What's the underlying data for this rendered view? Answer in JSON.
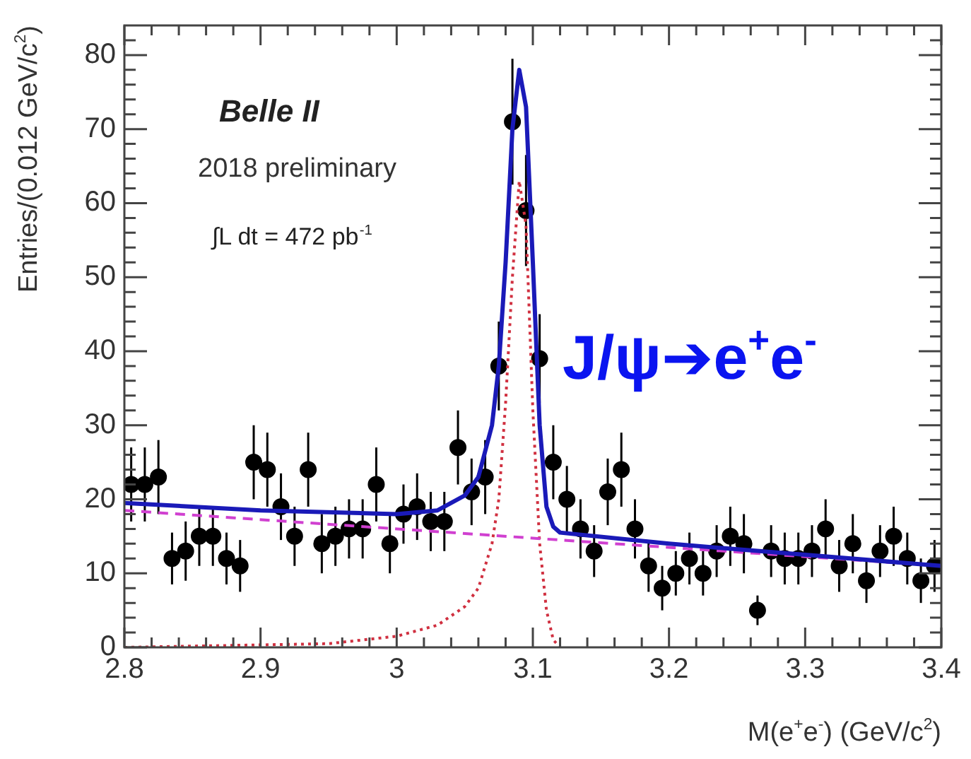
{
  "chart_data": {
    "type": "scatter",
    "xlabel": "M(e$^{+}$e$^{-}$) (GeV/c$^{2}$)",
    "ylabel": "Entries/(0.012 GeV/c$^{2}$)",
    "annotations": [
      "Belle II",
      "2018 preliminary",
      "∫L dt = 472 pb$^{-1}$",
      "J/ψ➔e$^{+}$e$^{-}$"
    ],
    "xlim": [
      2.8,
      3.4
    ],
    "ylim": [
      0,
      84
    ],
    "xticks": [
      2.8,
      {
        "value": 2.82,
        "label": null
      },
      {
        "value": 2.84,
        "label": null
      },
      {
        "value": 2.86,
        "label": null
      },
      {
        "value": 2.88,
        "label": null
      },
      2.9,
      {
        "value": 2.92,
        "label": null
      },
      {
        "value": 2.94,
        "label": null
      },
      {
        "value": 2.96,
        "label": null
      },
      {
        "value": 2.98,
        "label": null
      },
      3,
      {
        "value": 3.02,
        "label": null
      },
      {
        "value": 3.04,
        "label": null
      },
      {
        "value": 3.06,
        "label": null
      },
      {
        "value": 3.08,
        "label": null
      },
      3.1,
      {
        "value": 3.12,
        "label": null
      },
      {
        "value": 3.14,
        "label": null
      },
      {
        "value": 3.16,
        "label": null
      },
      {
        "value": 3.18,
        "label": null
      },
      3.2,
      {
        "value": 3.22,
        "label": null
      },
      {
        "value": 3.24,
        "label": null
      },
      {
        "value": 3.26,
        "label": null
      },
      {
        "value": 3.28,
        "label": null
      },
      3.3,
      {
        "value": 3.32,
        "label": null
      },
      {
        "value": 3.34,
        "label": null
      },
      {
        "value": 3.36,
        "label": null
      },
      {
        "value": 3.38,
        "label": null
      },
      3.4
    ],
    "yticks": [
      0,
      {
        "value": 2,
        "label": null
      },
      {
        "value": 4,
        "label": null
      },
      {
        "value": 6,
        "label": null
      },
      {
        "value": 8,
        "label": null
      },
      10,
      {
        "value": 12,
        "label": null
      },
      {
        "value": 14,
        "label": null
      },
      {
        "value": 16,
        "label": null
      },
      {
        "value": 18,
        "label": null
      },
      20,
      {
        "value": 22,
        "label": null
      },
      {
        "value": 24,
        "label": null
      },
      {
        "value": 26,
        "label": null
      },
      {
        "value": 28,
        "label": null
      },
      30,
      {
        "value": 32,
        "label": null
      },
      {
        "value": 34,
        "label": null
      },
      {
        "value": 36,
        "label": null
      },
      {
        "value": 38,
        "label": null
      },
      40,
      {
        "value": 42,
        "label": null
      },
      {
        "value": 44,
        "label": null
      },
      {
        "value": 46,
        "label": null
      },
      {
        "value": 48,
        "label": null
      },
      50,
      {
        "value": 52,
        "label": null
      },
      {
        "value": 54,
        "label": null
      },
      {
        "value": 56,
        "label": null
      },
      {
        "value": 58,
        "label": null
      },
      60,
      {
        "value": 62,
        "label": null
      },
      {
        "value": 64,
        "label": null
      },
      {
        "value": 66,
        "label": null
      },
      {
        "value": 68,
        "label": null
      },
      70,
      {
        "value": 72,
        "label": null
      },
      {
        "value": 74,
        "label": null
      },
      {
        "value": 76,
        "label": null
      },
      {
        "value": 78,
        "label": null
      },
      80,
      {
        "value": 82,
        "label": null
      }
    ],
    "grid": false,
    "legend": false,
    "series": [
      {
        "color": "#000000",
        "marker": "circle",
        "x": [
          2.805,
          2.815,
          2.825,
          2.835,
          2.845,
          2.855,
          2.865,
          2.875,
          2.885,
          2.895,
          2.905,
          2.915,
          2.925,
          2.935,
          2.945,
          2.955,
          2.965,
          2.975,
          2.985,
          2.995,
          3.005,
          3.015,
          3.025,
          3.035,
          3.045,
          3.055,
          3.065,
          3.075,
          3.085,
          3.095,
          3.105,
          3.115,
          3.125,
          3.135,
          3.145,
          3.155,
          3.165,
          3.175,
          3.185,
          3.195,
          3.205,
          3.215,
          3.225,
          3.235,
          3.245,
          3.255,
          3.265,
          3.275,
          3.285,
          3.295,
          3.305,
          3.315,
          3.325,
          3.335,
          3.345,
          3.355,
          3.365,
          3.375,
          3.385,
          3.395
        ],
        "values": [
          22,
          22,
          23,
          12,
          13,
          15,
          15,
          12,
          11,
          25,
          24,
          19,
          15,
          24,
          14,
          15,
          16,
          16,
          22,
          14,
          18,
          19,
          17,
          17,
          27,
          21,
          23,
          38,
          71,
          59,
          39,
          25,
          20,
          16,
          13,
          21,
          24,
          16,
          11,
          8,
          10,
          12,
          10,
          13,
          15,
          14,
          5,
          13,
          12,
          12,
          13,
          16,
          11,
          14,
          9,
          13,
          15,
          12,
          9,
          11
        ],
        "errors": [
          5,
          5,
          5,
          3.5,
          4,
          4,
          4,
          3.5,
          3.5,
          5,
          5,
          4.5,
          4,
          5,
          4,
          4,
          4,
          4,
          5,
          4,
          4,
          4.5,
          4,
          4,
          5,
          4.5,
          5,
          6,
          8.5,
          7.5,
          6,
          5,
          4.5,
          4,
          3.5,
          4.5,
          5,
          4,
          3.5,
          3,
          3,
          3.5,
          3,
          3.5,
          4,
          4,
          2,
          3.5,
          3.5,
          3.5,
          3.5,
          4,
          3.5,
          4,
          3,
          3.5,
          4,
          3.5,
          3,
          3.5
        ]
      },
      {
        "type": "line",
        "color": "#1a1ab8",
        "marker": "none",
        "line_style": "solid",
        "x": [
          2.8,
          2.9,
          3.0,
          3.03,
          3.05,
          3.06,
          3.07,
          3.075,
          3.08,
          3.085,
          3.09,
          3.095,
          3.1,
          3.105,
          3.11,
          3.115,
          3.12,
          3.2,
          3.3,
          3.4
        ],
        "values": [
          19.5,
          18.5,
          18,
          18.5,
          20.5,
          23,
          30,
          38,
          52,
          70,
          78,
          73,
          52,
          30,
          19,
          16.3,
          15.5,
          14,
          12.5,
          11
        ]
      },
      {
        "type": "line",
        "color": "#d040d0",
        "marker": "none",
        "line_style": "dashed",
        "x": [
          2.8,
          3.4
        ],
        "values": [
          18.5,
          11
        ]
      },
      {
        "type": "line",
        "color": "#d03040",
        "marker": "none",
        "line_style": "dotted",
        "x": [
          2.8,
          2.95,
          3.0,
          3.03,
          3.05,
          3.06,
          3.07,
          3.075,
          3.08,
          3.085,
          3.09,
          3.095,
          3.1,
          3.105,
          3.11,
          3.115,
          3.12
        ],
        "values": [
          0,
          0.5,
          1.5,
          3,
          5.5,
          8,
          14,
          20,
          33,
          50,
          63,
          57,
          32,
          14,
          5,
          1,
          0
        ]
      }
    ]
  }
}
